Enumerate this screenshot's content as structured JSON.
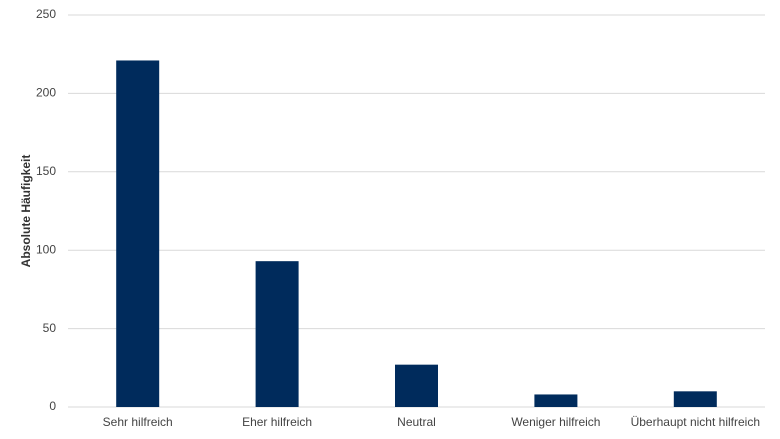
{
  "chart_data": {
    "type": "bar",
    "y_label": "Absolute Häufigkeit",
    "categories": [
      "Sehr hilfreich",
      "Eher hilfreich",
      "Neutral",
      "Weniger hilfreich",
      "Überhaupt nicht hilfreich"
    ],
    "values": [
      221,
      93,
      27,
      8,
      10
    ],
    "color": "#002b5c",
    "ylim": [
      0,
      250
    ],
    "yticks": [
      0,
      50,
      100,
      150,
      200,
      250
    ],
    "grid": true
  }
}
